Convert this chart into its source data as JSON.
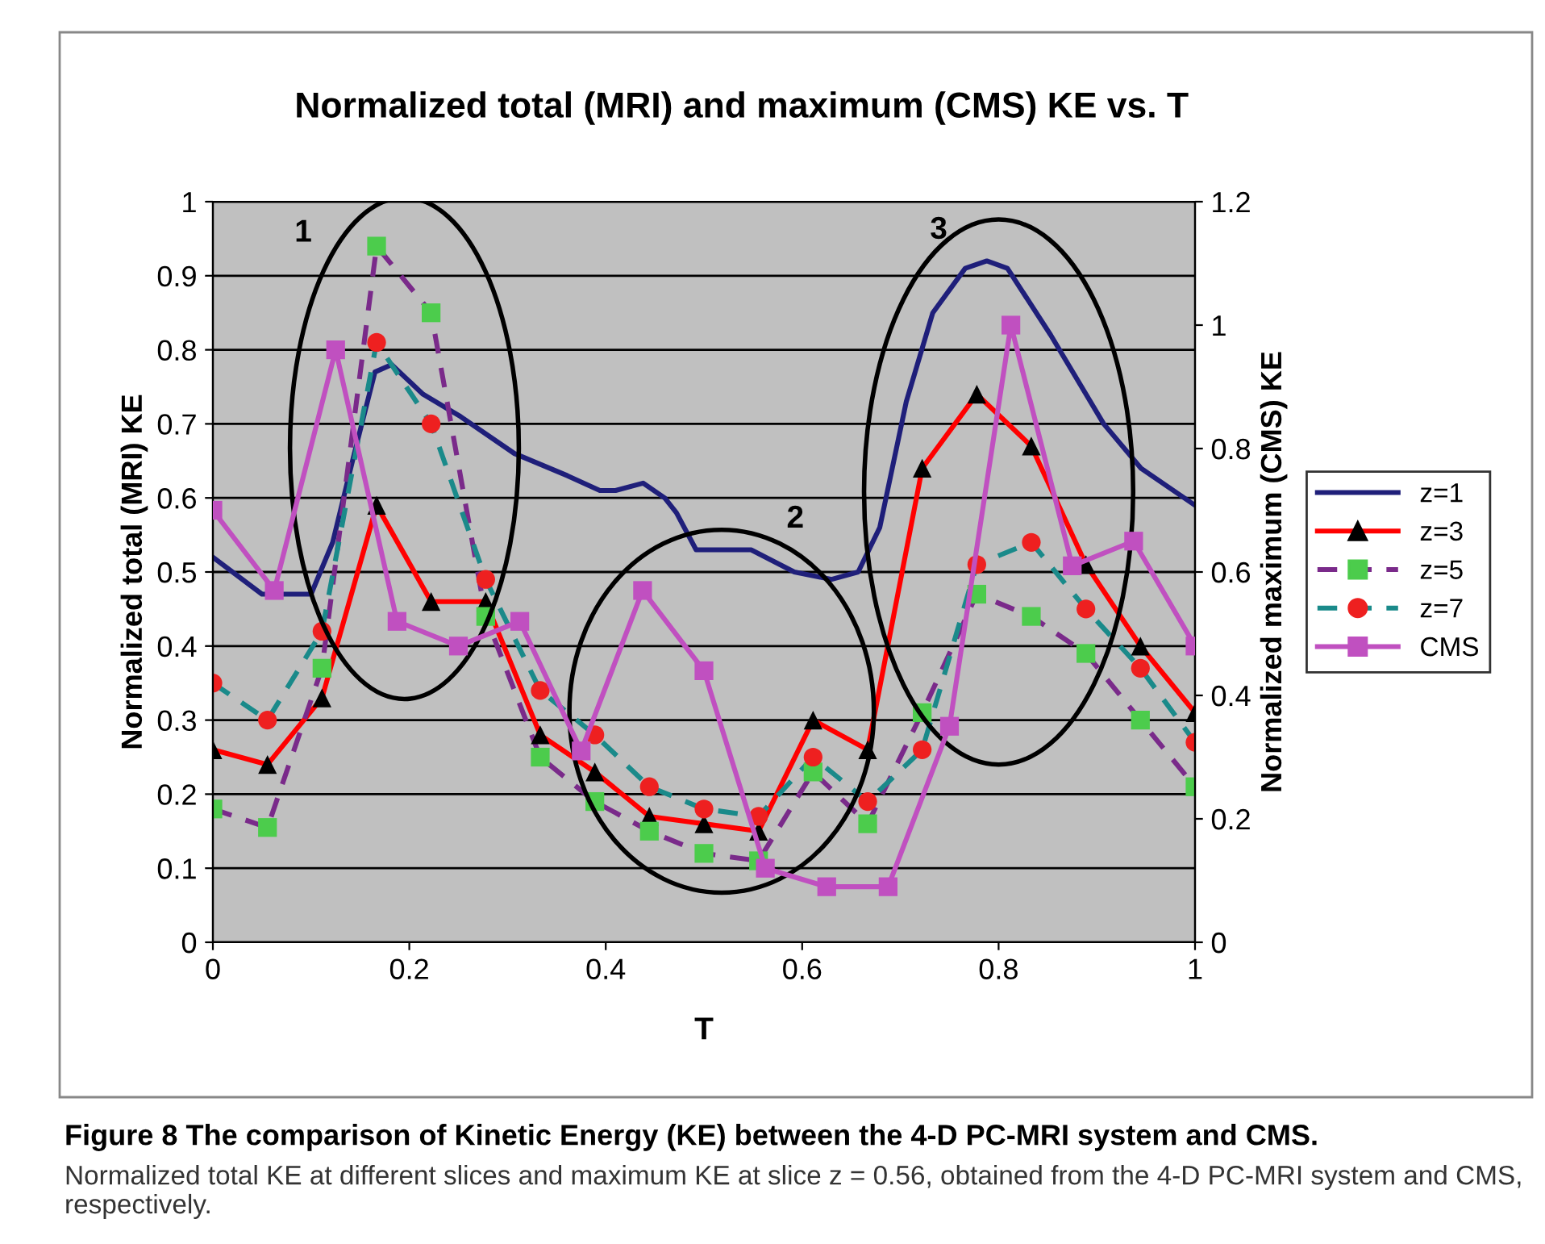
{
  "chart_data": {
    "type": "line",
    "title": "Normalized total (MRI) and maximum (CMS) KE vs. T",
    "xlabel": "T",
    "ylabel": "Normalized total (MRI) KE",
    "y2label": "Normalized maximum (CMS) KE",
    "x": [
      0,
      0.0556,
      0.1111,
      0.1667,
      0.2222,
      0.2778,
      0.3333,
      0.3889,
      0.4444,
      0.5,
      0.5556,
      0.6111,
      0.6667,
      0.7222,
      0.7778,
      0.8333,
      0.8889,
      0.9444,
      1
    ],
    "series": [
      {
        "name": "z=1",
        "color": "#1f1f7a",
        "marker": "none",
        "line_style": "solid",
        "x": [
          0,
          0.05,
          0.1,
          0.122,
          0.144,
          0.165,
          0.182,
          0.214,
          0.252,
          0.307,
          0.361,
          0.394,
          0.41,
          0.438,
          0.46,
          0.472,
          0.492,
          0.505,
          0.548,
          0.592,
          0.63,
          0.657,
          0.679,
          0.706,
          0.733,
          0.766,
          0.788,
          0.809,
          0.853,
          0.907,
          0.945,
          1
        ],
        "values": [
          0.52,
          0.47,
          0.47,
          0.54,
          0.66,
          0.77,
          0.78,
          0.74,
          0.71,
          0.66,
          0.63,
          0.61,
          0.61,
          0.62,
          0.6,
          0.58,
          0.53,
          0.53,
          0.53,
          0.5,
          0.49,
          0.5,
          0.56,
          0.73,
          0.85,
          0.91,
          0.92,
          0.91,
          0.82,
          0.7,
          0.64,
          0.59
        ]
      },
      {
        "name": "z=3",
        "color": "#ff0000",
        "marker": "triangle",
        "line_style": "solid",
        "colors": [
          "#000000",
          "#000000",
          "#000000",
          "#000000",
          "#000000",
          "#000000",
          "#000000",
          "#000000",
          "#000000",
          "#000000",
          "#000000",
          "#000000",
          "#000000",
          "#000000",
          "#000000",
          "#000000",
          "#000000",
          "#000000",
          "#000000"
        ],
        "values": [
          0.26,
          0.24,
          0.33,
          0.59,
          0.46,
          0.46,
          0.28,
          0.23,
          0.17,
          0.16,
          0.15,
          0.3,
          0.26,
          0.64,
          0.74,
          0.67,
          0.51,
          0.4,
          0.31
        ]
      },
      {
        "name": "z=5",
        "color": "#7a2a8a",
        "marker": "square",
        "line_style": "dashed",
        "colors": [
          "#4ccc4c",
          "#4ccc4c",
          "#4ccc4c",
          "#4ccc4c",
          "#4ccc4c",
          "#4ccc4c",
          "#4ccc4c",
          "#4ccc4c",
          "#4ccc4c",
          "#4ccc4c",
          "#4ccc4c",
          "#4ccc4c",
          "#4ccc4c",
          "#4ccc4c",
          "#4ccc4c",
          "#4ccc4c",
          "#4ccc4c",
          "#4ccc4c",
          "#4ccc4c"
        ],
        "values": [
          0.18,
          0.155,
          0.37,
          0.94,
          0.85,
          0.44,
          0.25,
          0.19,
          0.15,
          0.12,
          0.11,
          0.23,
          0.16,
          0.31,
          0.47,
          0.44,
          0.39,
          0.3,
          0.21
        ]
      },
      {
        "name": "z=7",
        "color": "#1a8a8a",
        "marker": "circle",
        "line_style": "dashed",
        "colors": [
          "#ee2020",
          "#ee2020",
          "#ee2020",
          "#ee2020",
          "#ee2020",
          "#ee2020",
          "#ee2020",
          "#ee2020",
          "#ee2020",
          "#ee2020",
          "#ee2020",
          "#ee2020",
          "#ee2020",
          "#ee2020",
          "#ee2020",
          "#ee2020",
          "#ee2020",
          "#ee2020",
          "#ee2020"
        ],
        "values": [
          0.35,
          0.3,
          0.42,
          0.81,
          0.7,
          0.49,
          0.34,
          0.28,
          0.21,
          0.18,
          0.17,
          0.25,
          0.19,
          0.26,
          0.51,
          0.54,
          0.45,
          0.37,
          0.27
        ]
      },
      {
        "name": "CMS",
        "color": "#c050c0",
        "marker": "square",
        "line_style": "solid",
        "axis": "y2",
        "x": [
          0,
          0.0625,
          0.125,
          0.1875,
          0.25,
          0.3125,
          0.375,
          0.4375,
          0.5,
          0.5625,
          0.625,
          0.6875,
          0.75,
          0.8125,
          0.875,
          0.9375,
          1
        ],
        "values": [
          0.7,
          0.57,
          0.96,
          0.52,
          0.48,
          0.52,
          0.31,
          0.57,
          0.44,
          0.12,
          0.09,
          0.09,
          0.35,
          1.0,
          0.61,
          0.65,
          0.48
        ]
      }
    ],
    "xlim": [
      0,
      1
    ],
    "xticks": [
      0,
      0.2,
      0.4,
      0.6,
      0.8,
      1
    ],
    "ylim": [
      0,
      1
    ],
    "yticks": [
      0,
      0.1,
      0.2,
      0.3,
      0.4,
      0.5,
      0.6,
      0.7,
      0.8,
      0.9,
      1
    ],
    "y2lim": [
      0,
      1.2
    ],
    "y2ticks": [
      0,
      0.2,
      0.4,
      0.6,
      0.8,
      1,
      1.2
    ],
    "grid": "y",
    "legend": "right",
    "annotations": [
      "1",
      "2",
      "3",
      "Figure 8 The comparison of Kinetic Energy (KE) between the 4-D PC-MRI system and CMS.",
      "Normalized total KE at different slices and maximum KE at slice z = 0.56, obtained from the 4-D PC-MRI system and CMS, respectively."
    ]
  }
}
